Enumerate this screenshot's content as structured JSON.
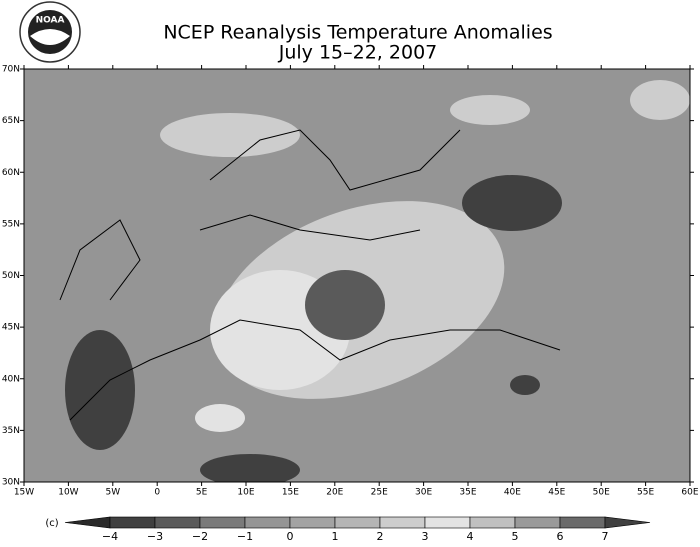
{
  "header": {
    "title": "NCEP Reanalysis Temperature Anomalies",
    "subtitle": "July 15–22, 2007",
    "logo_text": "NOAA"
  },
  "map": {
    "lat_labels": [
      "70N",
      "65N",
      "60N",
      "55N",
      "50N",
      "45N",
      "40N",
      "35N",
      "30N"
    ],
    "lon_labels": [
      "15W",
      "10W",
      "5W",
      "0",
      "5E",
      "10E",
      "15E",
      "20E",
      "25E",
      "30E",
      "35E",
      "40E",
      "45E",
      "50E",
      "55E",
      "60E"
    ]
  },
  "colorbar": {
    "unit_label": "(c)",
    "labels": [
      "−4",
      "−3",
      "−2",
      "−1",
      "0",
      "1",
      "2",
      "3",
      "4",
      "5",
      "6",
      "7"
    ],
    "colors": [
      "#2a2a2a",
      "#404040",
      "#5a5a5a",
      "#7a7a7a",
      "#959595",
      "#a3a3a3",
      "#b5b5b5",
      "#cdcdcd",
      "#e3e3e3",
      "#c0c0c0",
      "#9a9a9a",
      "#6a6a6a",
      "#404040"
    ]
  }
}
